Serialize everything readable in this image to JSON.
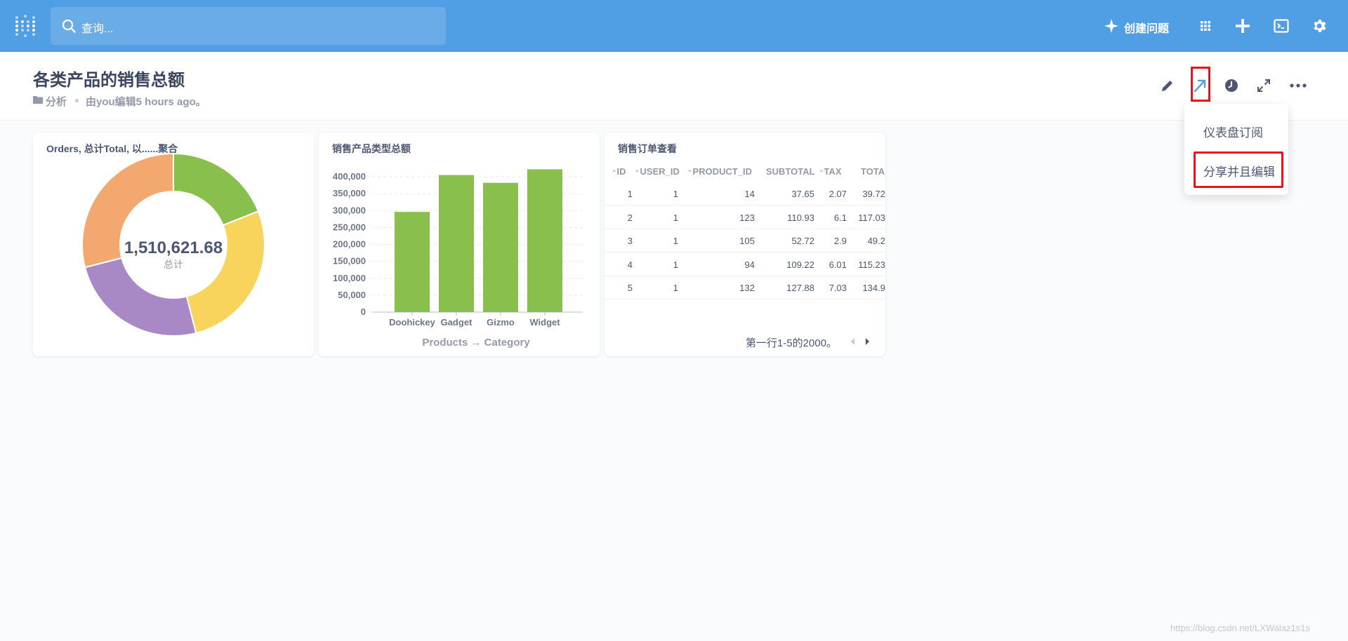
{
  "nav": {
    "search_placeholder": "查询...",
    "create_question": "创建问题",
    "accent_color": "#509ee3"
  },
  "header": {
    "title": "各类产品的销售总额",
    "collection": "分析",
    "edited": "由you编辑5 hours ago。"
  },
  "dropdown": {
    "items": [
      "仪表盘订阅",
      "分享并且编辑"
    ]
  },
  "cards": {
    "donut_title": "Orders, 总计Total, 以......聚合",
    "bar_title": "销售产品类型总额",
    "table_title": "销售订单查看"
  },
  "chart_data": [
    {
      "type": "pie",
      "title": "Orders, 总计Total, 以......聚合",
      "center_value": "1,510,621.68",
      "center_label": "总计",
      "values": [
        0.19,
        0.27,
        0.25,
        0.29
      ],
      "colors": [
        "#88bf4d",
        "#f9d45c",
        "#a989c5",
        "#f2a86f"
      ]
    },
    {
      "type": "bar",
      "title": "销售产品类型总额",
      "categories": [
        "Doohickey",
        "Gadget",
        "Gizmo",
        "Widget"
      ],
      "values": [
        296000,
        405000,
        382000,
        422000
      ],
      "xlabel": "Products → Category",
      "ylabel": "",
      "ylim": [
        0,
        400000
      ],
      "yticks": [
        "400,000",
        "350,000",
        "300,000",
        "250,000",
        "200,000",
        "150,000",
        "100,000",
        "50,000",
        "0"
      ],
      "color": "#88bf4d",
      "grid": true
    }
  ],
  "table": {
    "columns": [
      "ID",
      "USER_ID",
      "PRODUCT_ID",
      "SUBTOTAL",
      "TAX",
      "TOTA"
    ],
    "rows": [
      [
        "1",
        "1",
        "14",
        "37.65",
        "2.07",
        "39.72"
      ],
      [
        "2",
        "1",
        "123",
        "110.93",
        "6.1",
        "117.03"
      ],
      [
        "3",
        "1",
        "105",
        "52.72",
        "2.9",
        "49.2"
      ],
      [
        "4",
        "1",
        "94",
        "109.22",
        "6.01",
        "115.23"
      ],
      [
        "5",
        "1",
        "132",
        "127.88",
        "7.03",
        "134.9"
      ]
    ],
    "pager": "第一行1-5的2000。"
  },
  "watermark": "https://blog.csdn.net/LXWalaz1s1s"
}
